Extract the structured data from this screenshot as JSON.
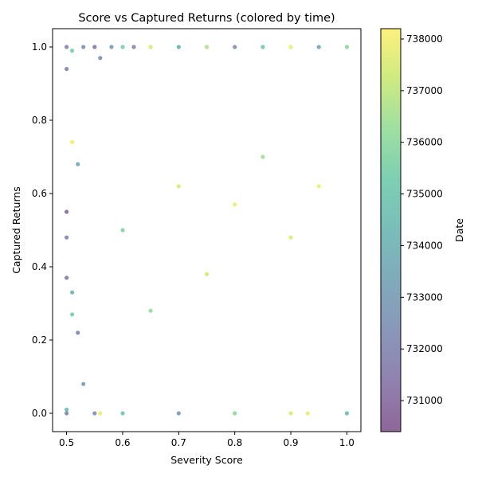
{
  "chart_data": {
    "type": "scatter",
    "title": "Score vs Captured Returns (colored by time)",
    "xlabel": "Severity Score",
    "ylabel": "Captured Returns",
    "xlim": [
      0.475,
      1.025
    ],
    "ylim": [
      -0.05,
      1.05
    ],
    "x_ticks": [
      "0.5",
      "0.6",
      "0.7",
      "0.8",
      "0.9",
      "1.0"
    ],
    "y_ticks": [
      "0.0",
      "0.2",
      "0.4",
      "0.6",
      "0.8",
      "1.0"
    ],
    "grid": false,
    "colormap": "viridis",
    "point_alpha": 0.6,
    "colorbar": {
      "label": "Date",
      "range": [
        730400,
        738200
      ],
      "ticks": [
        "731000",
        "732000",
        "733000",
        "734000",
        "735000",
        "736000",
        "737000",
        "738000"
      ]
    },
    "series": [
      {
        "points": [
          [
            0.5,
            1.0,
            732000
          ],
          [
            0.51,
            0.99,
            735500
          ],
          [
            0.53,
            1.0,
            732500
          ],
          [
            0.55,
            1.0,
            731500
          ],
          [
            0.56,
            0.97,
            732200
          ],
          [
            0.58,
            1.0,
            733000
          ],
          [
            0.6,
            1.0,
            735500
          ],
          [
            0.62,
            1.0,
            732000
          ],
          [
            0.65,
            1.0,
            737500
          ],
          [
            0.7,
            1.0,
            734000
          ],
          [
            0.75,
            1.0,
            736800
          ],
          [
            0.8,
            1.0,
            732500
          ],
          [
            0.85,
            1.0,
            735000
          ],
          [
            0.9,
            1.0,
            737800
          ],
          [
            0.95,
            1.0,
            733500
          ],
          [
            1.0,
            1.0,
            736000
          ],
          [
            0.5,
            0.94,
            732000
          ],
          [
            0.51,
            0.74,
            737900
          ],
          [
            0.52,
            0.68,
            733500
          ],
          [
            0.5,
            0.55,
            731000
          ],
          [
            0.5,
            0.48,
            732000
          ],
          [
            0.5,
            0.37,
            731500
          ],
          [
            0.51,
            0.33,
            734000
          ],
          [
            0.51,
            0.27,
            735500
          ],
          [
            0.52,
            0.22,
            732000
          ],
          [
            0.53,
            0.08,
            733000
          ],
          [
            0.5,
            0.01,
            734500
          ],
          [
            0.5,
            0.0,
            732000
          ],
          [
            0.55,
            0.0,
            732500
          ],
          [
            0.6,
            0.0,
            735000
          ],
          [
            0.7,
            0.0,
            733000
          ],
          [
            0.8,
            0.0,
            736000
          ],
          [
            0.9,
            0.0,
            737500
          ],
          [
            1.0,
            0.0,
            734500
          ],
          [
            0.56,
            0.0,
            737900
          ],
          [
            0.93,
            0.0,
            737800
          ],
          [
            0.7,
            0.62,
            737500
          ],
          [
            0.8,
            0.57,
            737800
          ],
          [
            0.9,
            0.48,
            737600
          ],
          [
            0.75,
            0.38,
            737400
          ],
          [
            0.6,
            0.5,
            735800
          ],
          [
            0.85,
            0.7,
            736500
          ],
          [
            0.95,
            0.62,
            737900
          ],
          [
            0.65,
            0.28,
            736200
          ]
        ]
      }
    ]
  }
}
